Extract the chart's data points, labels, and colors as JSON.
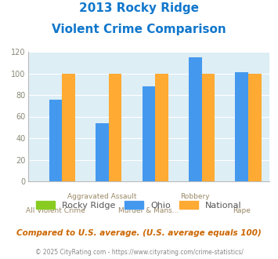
{
  "title_line1": "2013 Rocky Ridge",
  "title_line2": "Violent Crime Comparison",
  "rocky_ridge": [
    0,
    0,
    0,
    0,
    0
  ],
  "ohio": [
    76,
    54,
    88,
    115,
    101
  ],
  "national": [
    100,
    100,
    100,
    100,
    100
  ],
  "colors": {
    "rocky_ridge": "#88cc22",
    "ohio": "#4499ee",
    "national": "#ffaa33"
  },
  "ylim": [
    0,
    120
  ],
  "yticks": [
    0,
    20,
    40,
    60,
    80,
    100,
    120
  ],
  "title_color": "#1177cc",
  "bg_color": "#ddeef5",
  "note": "Compared to U.S. average. (U.S. average equals 100)",
  "footer": "© 2025 CityRating.com - https://www.cityrating.com/crime-statistics/",
  "legend_labels": [
    "Rocky Ridge",
    "Ohio",
    "National"
  ],
  "xtick_row1": [
    "",
    "Aggravated Assault",
    "",
    "Robbery",
    ""
  ],
  "xtick_row2": [
    "All Violent Crime",
    "",
    "Murder & Mans...",
    "",
    "Rape"
  ]
}
